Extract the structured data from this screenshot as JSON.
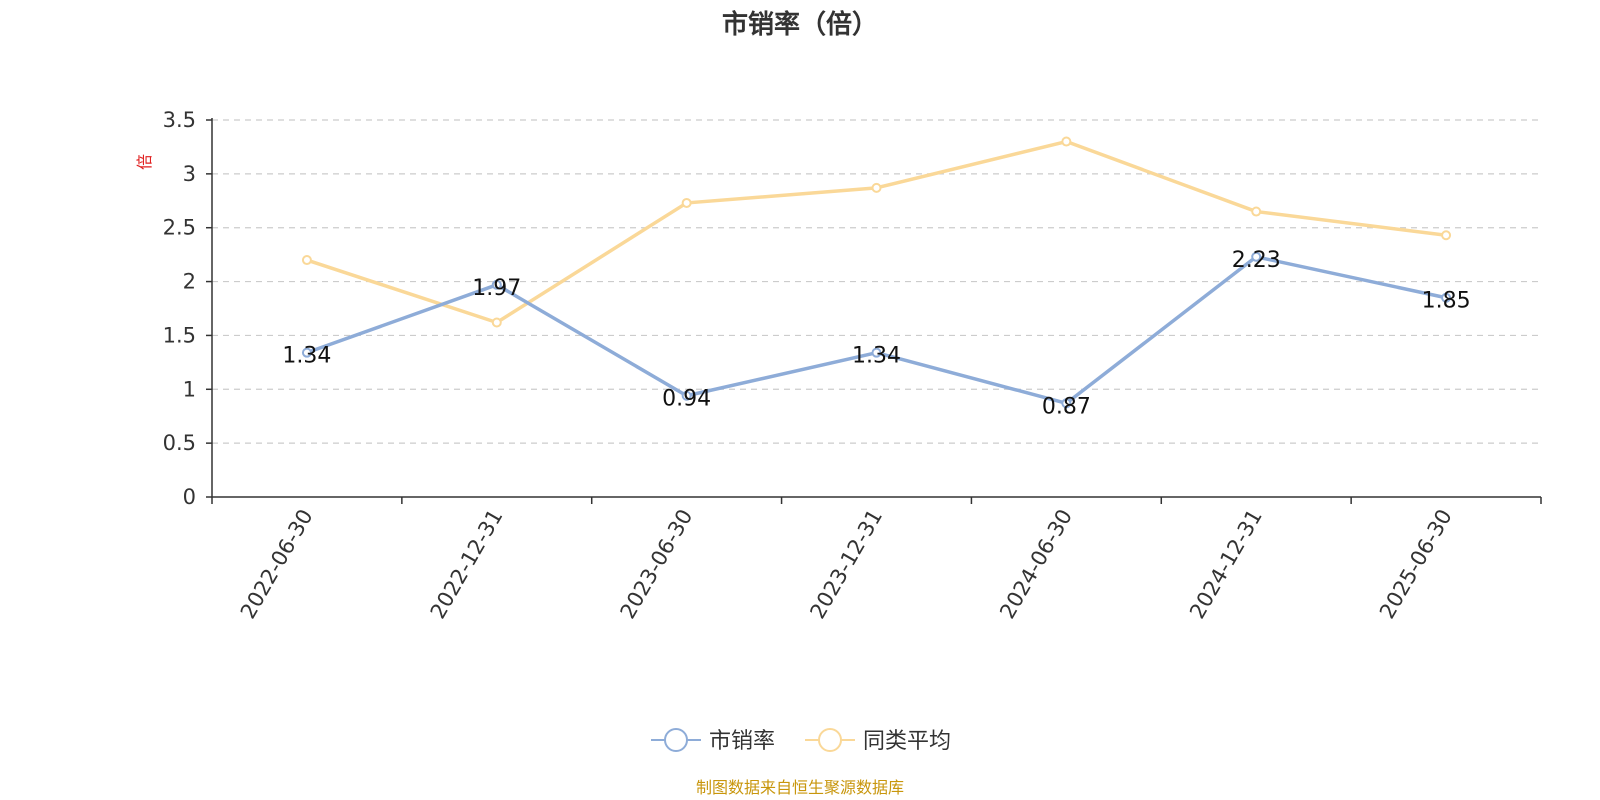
{
  "chart_data": {
    "type": "line",
    "title": "市销率（倍）",
    "ylabel": "倍",
    "xlabel": "",
    "categories": [
      "2022-06-30",
      "2022-12-31",
      "2023-06-30",
      "2023-12-31",
      "2024-06-30",
      "2024-12-31",
      "2025-06-30"
    ],
    "ylim": [
      0,
      3.5
    ],
    "yticks": [
      "0",
      "0.5",
      "1",
      "1.5",
      "2",
      "2.5",
      "3",
      "3.5"
    ],
    "grid": true,
    "legend_position": "bottom-center",
    "series": [
      {
        "name": "市销率",
        "color": "#8eacd8",
        "values": [
          1.34,
          1.97,
          0.94,
          1.34,
          0.87,
          2.23,
          1.85
        ],
        "labels": [
          "1.34",
          "1.97",
          "0.94",
          "1.34",
          "0.87",
          "2.23",
          "1.85"
        ]
      },
      {
        "name": "同类平均",
        "color": "#fad898",
        "values": [
          2.2,
          1.62,
          2.73,
          2.87,
          3.3,
          2.65,
          2.43
        ]
      }
    ],
    "source": "制图数据来自恒生聚源数据库"
  }
}
